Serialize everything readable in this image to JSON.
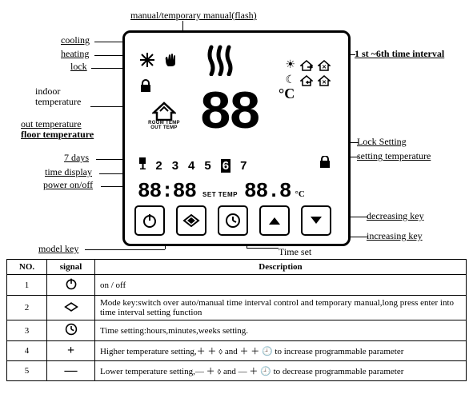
{
  "labels": {
    "manual": "manual/temporary manual(flash)",
    "cooling": "cooling",
    "heating": "heating",
    "lock": "lock",
    "indoor_temp": "indoor\ntemperature",
    "out_temp": "out temperature",
    "floor_temp": "floor temperature",
    "seven_days": "7 days",
    "time_display": "time display",
    "power": "power on/off",
    "model_key": "model key",
    "time_interval": "1 st ~6th time interval",
    "lock_setting": "Lock Setting",
    "setting_temp": "setting temperature",
    "dec_key": "decreasing key",
    "inc_key": "increasing key",
    "time_set": "Time set"
  },
  "display": {
    "big_temp": "88",
    "deg_unit": "°C",
    "days": [
      "1",
      "2",
      "3",
      "4",
      "5",
      "6",
      "7"
    ],
    "day_highlight_index": 5,
    "time": "88:88",
    "set_temp_label": "SET TEMP",
    "set_temp_value": "88.8",
    "set_temp_unit": "°C",
    "room_temp_label": "ROOM TEMP",
    "out_temp_label": "OUT TEMP"
  },
  "buttons": {
    "power": "⏻",
    "mode": "⬨",
    "clock": "🕘",
    "up": "▲",
    "down": "▼"
  },
  "table": {
    "headers": [
      "NO.",
      "signal",
      "Description"
    ],
    "rows": [
      {
        "no": "1",
        "sig": "⏻",
        "desc": "on / off"
      },
      {
        "no": "2",
        "sig": "⬨",
        "desc": "Mode key:switch over auto/manual time interval control and temporary manual,long press enter into time interval setting function"
      },
      {
        "no": "3",
        "sig": "🕘",
        "desc": "Time setting:hours,minutes,weeks setting."
      },
      {
        "no": "4",
        "sig": "＋",
        "desc": "Higher temperature setting,＋ ＋ ⬨ and ＋ ＋ 🕘 to increase programmable parameter"
      },
      {
        "no": "5",
        "sig": "—",
        "desc": "Lower temperature setting,— ＋ ⬨ and — ＋ 🕘 to decrease programmable parameter"
      }
    ]
  },
  "colors": {
    "fg": "#000000",
    "bg": "#ffffff"
  }
}
